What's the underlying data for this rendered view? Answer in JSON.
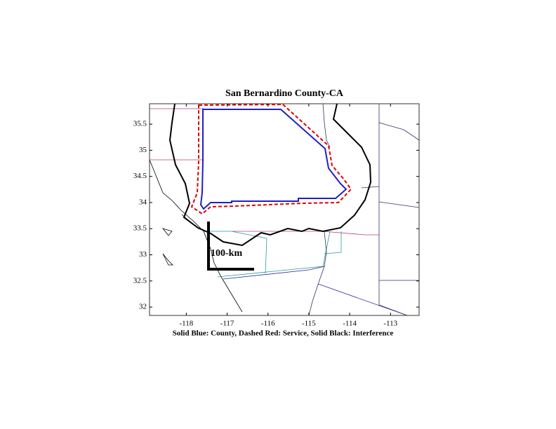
{
  "chart_data": {
    "type": "map",
    "title": "San Bernardino County-CA",
    "xlabel": "Solid Blue: County, Dashed Red: Service, Solid Black: Interference",
    "scale_label": "100-km",
    "xlim": [
      -118.9,
      -112.3
    ],
    "ylim": [
      31.84,
      35.89
    ],
    "xticks": [
      -118,
      -117,
      -116,
      -115,
      -114,
      -113
    ],
    "yticks": [
      32,
      32.5,
      33,
      33.5,
      34,
      34.5,
      35,
      35.5
    ]
  }
}
